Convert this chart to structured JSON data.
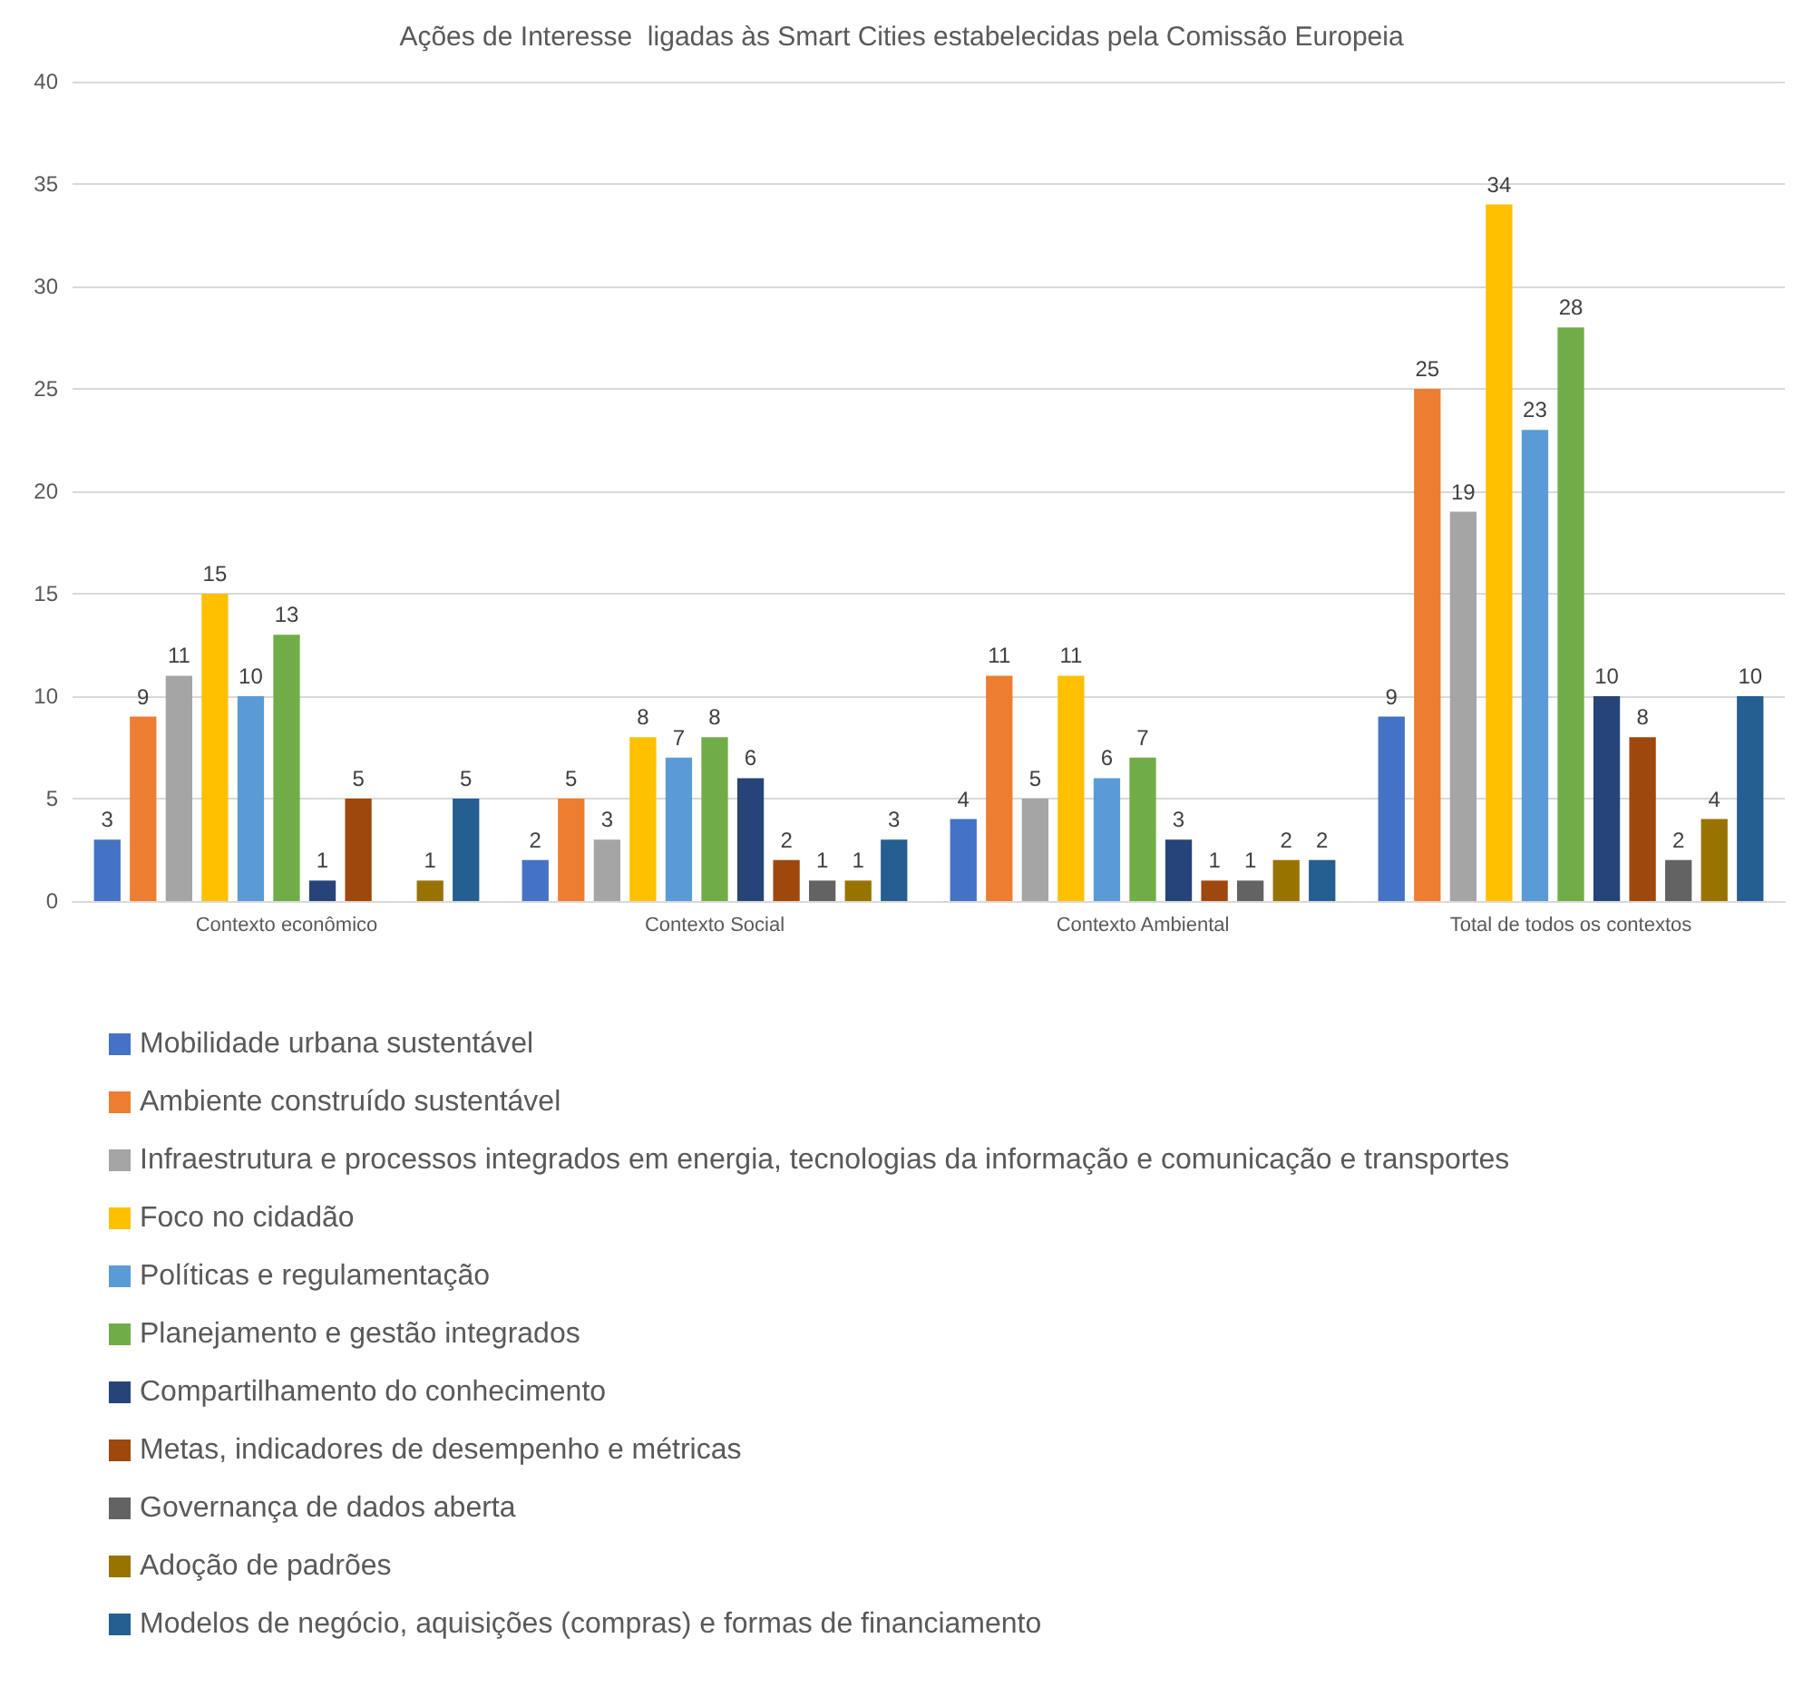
{
  "chart_data": {
    "type": "bar",
    "title": "Ações de Interesse  ligadas às Smart Cities estabelecidas pela Comissão Europeia",
    "categories": [
      "Contexto econômico",
      "Contexto Social",
      "Contexto Ambiental",
      "Total de todos os contextos"
    ],
    "series": [
      {
        "name": "Mobilidade urbana sustentável",
        "color": "#4472c4",
        "values": [
          3,
          2,
          4,
          9
        ]
      },
      {
        "name": "Ambiente construído sustentável",
        "color": "#ed7d31",
        "values": [
          9,
          5,
          11,
          25
        ]
      },
      {
        "name": "Infraestrutura e processos integrados em energia, tecnologias da informação e comunicação e transportes",
        "color": "#a5a5a5",
        "values": [
          11,
          3,
          5,
          19
        ]
      },
      {
        "name": "Foco no cidadão",
        "color": "#ffc000",
        "values": [
          15,
          8,
          11,
          34
        ]
      },
      {
        "name": "Políticas e regulamentação",
        "color": "#5b9bd5",
        "values": [
          10,
          7,
          6,
          23
        ]
      },
      {
        "name": "Planejamento e gestão integrados",
        "color": "#70ad47",
        "values": [
          13,
          8,
          7,
          28
        ]
      },
      {
        "name": "Compartilhamento do conhecimento",
        "color": "#264478",
        "values": [
          1,
          6,
          3,
          10
        ]
      },
      {
        "name": "Metas, indicadores de desempenho e métricas",
        "color": "#9e480e",
        "values": [
          5,
          2,
          1,
          8
        ]
      },
      {
        "name": "Governança de dados aberta",
        "color": "#636363",
        "values": [
          null,
          1,
          1,
          2
        ]
      },
      {
        "name": "Adoção de padrões",
        "color": "#997300",
        "values": [
          1,
          1,
          2,
          4
        ]
      },
      {
        "name": "Modelos de negócio, aquisições (compras) e formas de financiamento",
        "color": "#255e91",
        "values": [
          5,
          3,
          2,
          10
        ]
      }
    ],
    "ylim": [
      0,
      40
    ],
    "yticks": [
      0,
      5,
      10,
      15,
      20,
      25,
      30,
      35,
      40
    ],
    "grid": true,
    "legend": "bottom",
    "data_labels": true
  }
}
